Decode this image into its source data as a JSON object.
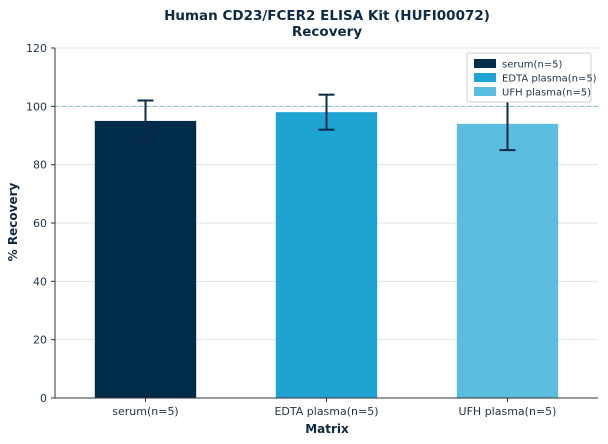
{
  "chart_data": {
    "type": "bar",
    "title": "Human CD23/FCER2 ELISA Kit (HUFI00072)",
    "subtitle": "Recovery",
    "xlabel": "Matrix",
    "ylabel": "% Recovery",
    "ylim": [
      0,
      120
    ],
    "yticks": [
      0,
      20,
      40,
      60,
      80,
      100,
      120
    ],
    "categories": [
      "serum(n=5)",
      "EDTA plasma(n=5)",
      "UFH plasma(n=5)"
    ],
    "values": [
      95,
      98,
      94
    ],
    "error": [
      7,
      6,
      9
    ],
    "colors": [
      "#002b49",
      "#1fa3d2",
      "#5bbde0"
    ],
    "reference_line": 100,
    "reference_color": "#7fc3d6",
    "grid": true,
    "legend": {
      "position": "top-right",
      "entries": [
        "serum(n=5)",
        "EDTA plasma(n=5)",
        "UFH plasma(n=5)"
      ]
    }
  }
}
